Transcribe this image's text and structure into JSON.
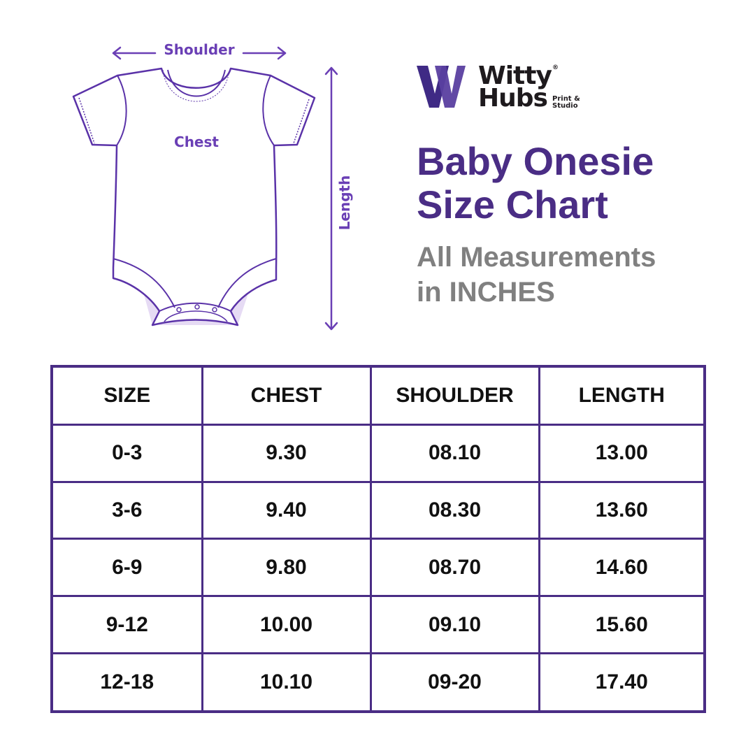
{
  "diagram": {
    "shoulder_label": "Shoulder",
    "chest_label": "Chest",
    "length_label": "Length"
  },
  "logo": {
    "line1": "Witty",
    "line2": "Hubs",
    "tag1": "Print &",
    "tag2": "Studio",
    "registered": "®"
  },
  "title": {
    "line1": "Baby Onesie",
    "line2": "Size Chart"
  },
  "subtitle": {
    "line1": "All Measurements",
    "line2": "in INCHES"
  },
  "colors": {
    "accent": "#4a2d85",
    "light_accent": "#cdb8e8",
    "subtitle": "#808080"
  },
  "table": {
    "headers": [
      "SIZE",
      "CHEST",
      "SHOULDER",
      "LENGTH"
    ],
    "rows": [
      [
        "0-3",
        "9.30",
        "08.10",
        "13.00"
      ],
      [
        "3-6",
        "9.40",
        "08.30",
        "13.60"
      ],
      [
        "6-9",
        "9.80",
        "08.70",
        "14.60"
      ],
      [
        "9-12",
        "10.00",
        "09.10",
        "15.60"
      ],
      [
        "12-18",
        "10.10",
        "09-20",
        "17.40"
      ]
    ]
  }
}
